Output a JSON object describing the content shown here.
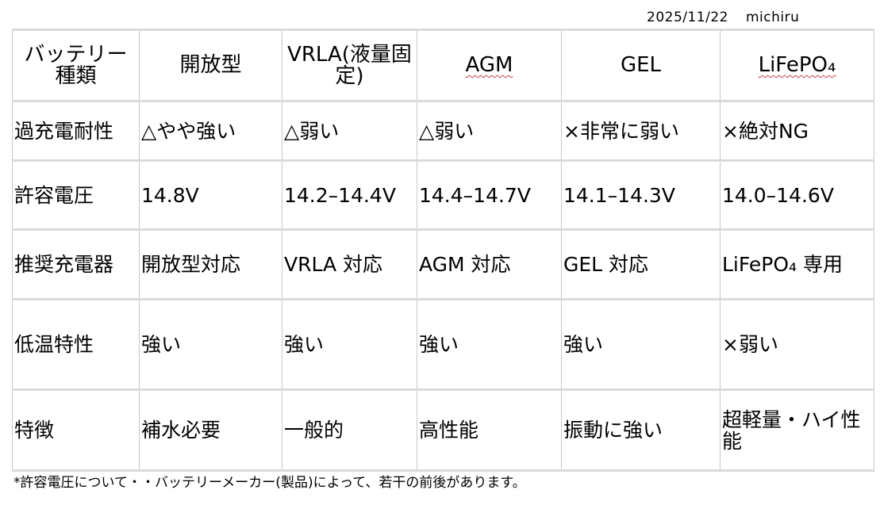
{
  "meta": {
    "date": "2025/11/22",
    "author": "michiru"
  },
  "table": {
    "header": [
      "バッテリー種類",
      "開放型",
      "VRLA(液量固定)",
      "AGM",
      "GEL",
      "LiFePO₄"
    ],
    "rows": [
      {
        "label": "過充電耐性",
        "cells": [
          "△やや強い",
          "△弱い",
          "△弱い",
          "×非常に弱い",
          "×絶対NG"
        ]
      },
      {
        "label": "許容電圧",
        "cells": [
          "14.8V",
          "14.2–14.4V",
          "14.4–14.7V",
          "14.1–14.3V",
          "14.0–14.6V"
        ]
      },
      {
        "label": "推奨充電器",
        "cells": [
          "開放型対応",
          "VRLA 対応",
          "AGM 対応",
          "GEL 対応",
          "LiFePO₄ 専用"
        ]
      },
      {
        "label": "低温特性",
        "cells": [
          "強い",
          "強い",
          "強い",
          "強い",
          "×弱い"
        ]
      },
      {
        "label": "特徴",
        "cells": [
          "補水必要",
          "一般的",
          "高性能",
          "振動に強い",
          "超軽量・ハイ性能"
        ]
      }
    ]
  },
  "footnote": "*許容電圧について・・バッテリーメーカー(製品)によって、若干の前後があります。"
}
